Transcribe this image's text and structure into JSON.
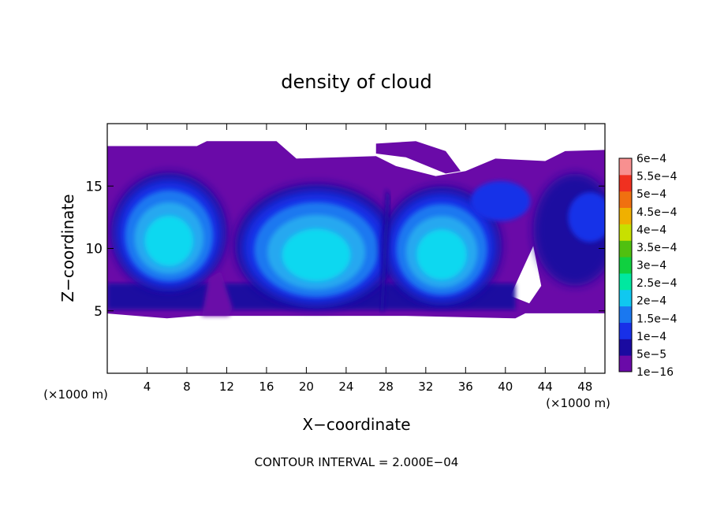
{
  "chart_data": {
    "type": "heatmap",
    "title": "density of cloud",
    "xlabel": "X−coordinate",
    "ylabel": "Z−coordinate",
    "x_unit_left": "(×1000 m)",
    "x_unit_right": "(×1000 m)",
    "xlim": [
      0,
      50
    ],
    "ylim": [
      0,
      20
    ],
    "x_ticks": [
      4,
      8,
      12,
      16,
      20,
      24,
      28,
      32,
      36,
      40,
      44,
      48
    ],
    "x_tick_labels": [
      "4",
      "8",
      "12",
      "16",
      "20",
      "24",
      "28",
      "32",
      "36",
      "40",
      "44",
      "48"
    ],
    "y_ticks": [
      5,
      10,
      15
    ],
    "y_tick_labels": [
      "5",
      "10",
      "15"
    ],
    "footer": "CONTOUR INTERVAL = 2.000E−04",
    "colorbar": {
      "labels": [
        "1e−16",
        "5e−5",
        "1e−4",
        "1.5e−4",
        "2e−4",
        "2.5e−4",
        "3e−4",
        "3.5e−4",
        "4e−4",
        "4.5e−4",
        "5e−4",
        "5.5e−4",
        "6e−4"
      ],
      "colors": [
        "#6a0aa8",
        "#1a0aa0",
        "#1830e8",
        "#1a78f0",
        "#10c8f0",
        "#00e8a0",
        "#10d040",
        "#50c010",
        "#c8e000",
        "#f0b000",
        "#f07010",
        "#f03020",
        "#f89090"
      ]
    },
    "cloud": {
      "base_km": 4.8,
      "top_km": 18.2,
      "cells": [
        {
          "x": 6.5,
          "z": 12.0,
          "peak": 0.00019
        },
        {
          "x": 21.0,
          "z": 10.5,
          "peak": 0.00019
        },
        {
          "x": 33.5,
          "z": 10.5,
          "peak": 0.00021
        },
        {
          "x": 47.5,
          "z": 12.0,
          "peak": 0.0001
        }
      ]
    },
    "colors": {
      "envelope": "#6a0aa8",
      "dark_blue": "#1a0aa0",
      "blue": "#1830e8",
      "mid_blue": "#1a78f0",
      "light_blue": "#28a8f0",
      "cyan": "#10d8f0"
    }
  }
}
